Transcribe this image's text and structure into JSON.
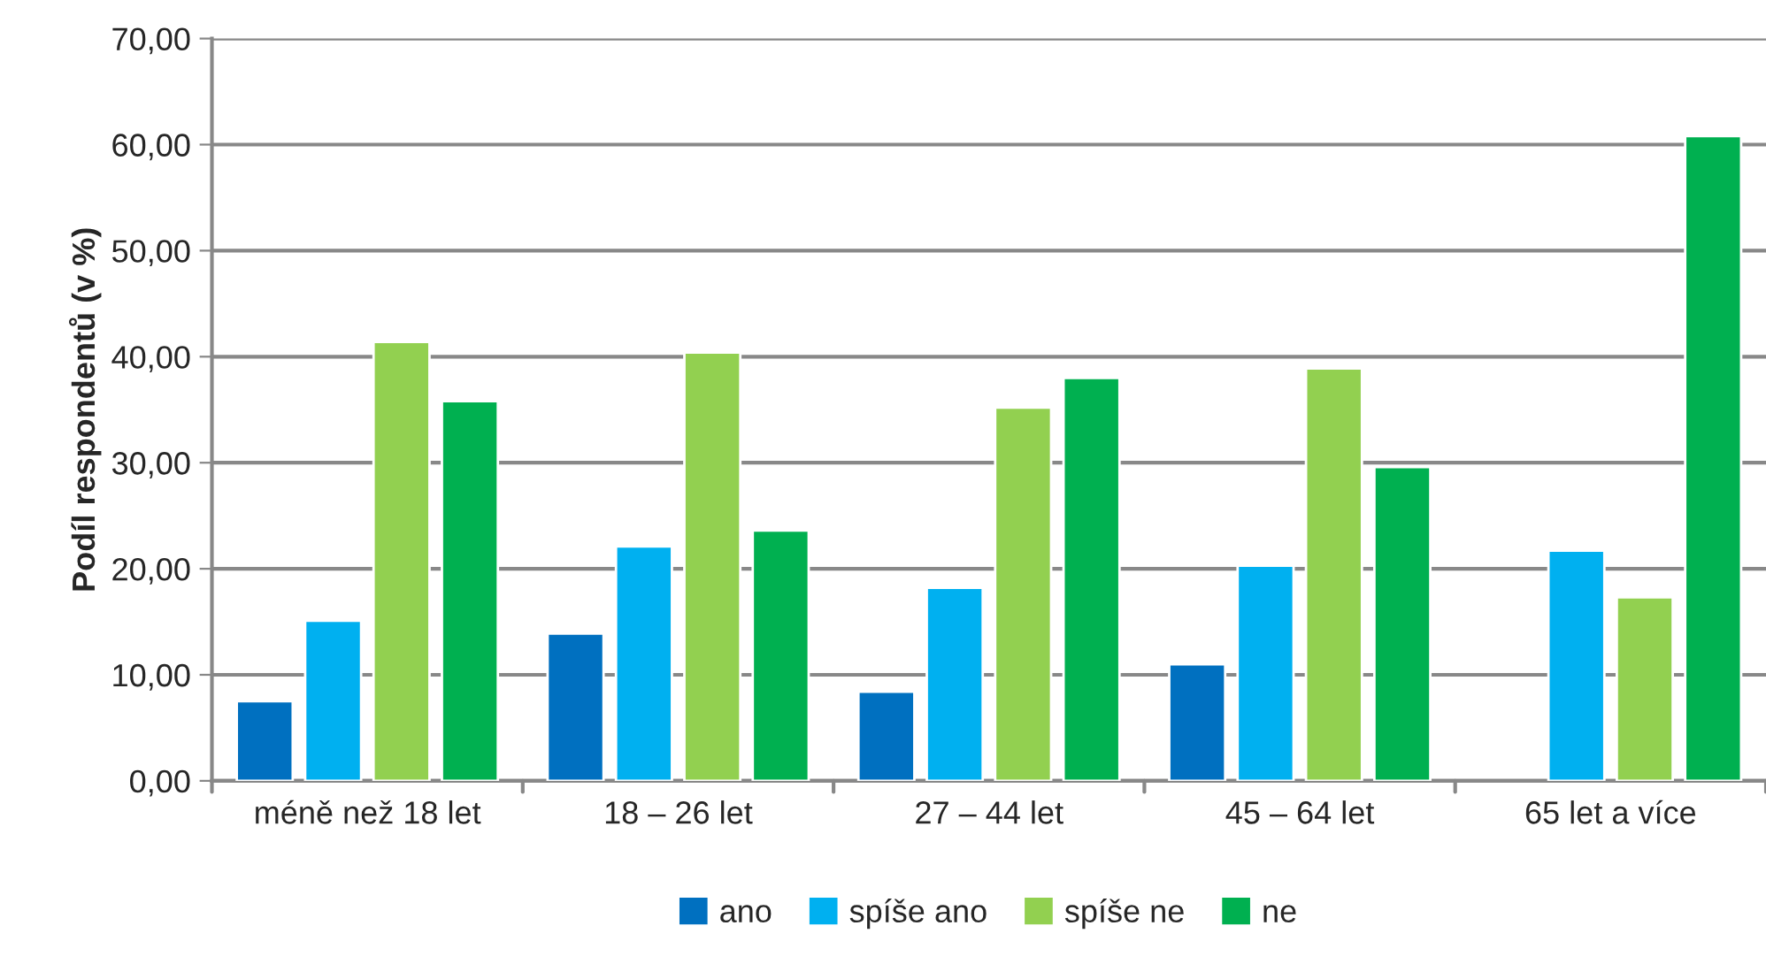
{
  "chart_data": {
    "type": "bar",
    "ylabel": "Podíl respondentů (v %)",
    "categories": [
      "méně než 18 let",
      "18 – 26 let",
      "27 – 44 let",
      "45 – 64 let",
      "65 let a více"
    ],
    "series": [
      {
        "name": "ano",
        "color": "#0070c0",
        "values": [
          7.5,
          13.9,
          8.4,
          11.0,
          null
        ]
      },
      {
        "name": "spíše ano",
        "color": "#00b0f0",
        "values": [
          15.1,
          22.1,
          18.2,
          20.3,
          21.7
        ]
      },
      {
        "name": "spíše ne",
        "color": "#92d050",
        "values": [
          41.4,
          40.4,
          35.2,
          38.9,
          17.3
        ]
      },
      {
        "name": "ne",
        "color": "#00b050",
        "values": [
          35.8,
          23.6,
          38.0,
          29.6,
          60.8
        ]
      }
    ],
    "ylim": [
      0,
      70
    ],
    "yticks": [
      {
        "value": 0,
        "label": "0,00"
      },
      {
        "value": 10,
        "label": "10,00"
      },
      {
        "value": 20,
        "label": "20,00"
      },
      {
        "value": 30,
        "label": "30,00"
      },
      {
        "value": 40,
        "label": "40,00"
      },
      {
        "value": 50,
        "label": "50,00"
      },
      {
        "value": 60,
        "label": "60,00"
      },
      {
        "value": 70,
        "label": "70,00"
      }
    ],
    "grid": "y",
    "legend": "bottom"
  }
}
